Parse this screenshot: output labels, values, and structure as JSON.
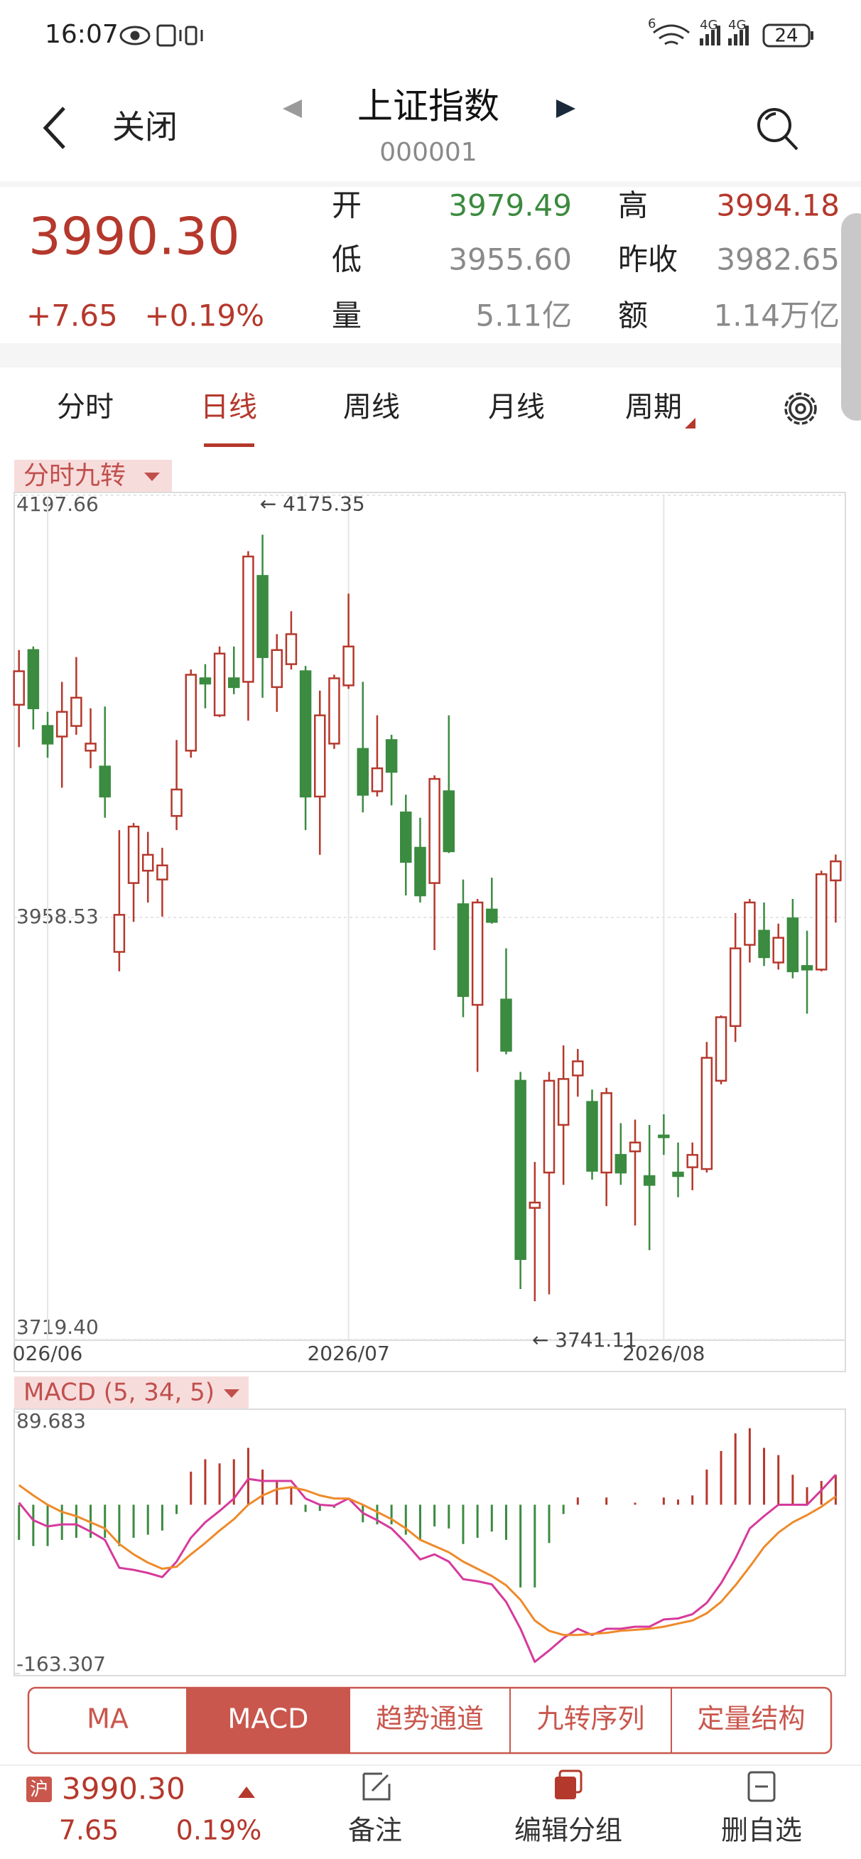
{
  "status_bar": {
    "time": "16:07",
    "wifi": "6",
    "network_1": "4G",
    "network_2": "4G",
    "battery": "24"
  },
  "header": {
    "back": "关闭",
    "title": "上证指数",
    "code": "000001"
  },
  "quote": {
    "price": "3990.30",
    "change": "+7.65",
    "change_pct": "+0.19%",
    "fields": [
      {
        "label": "开",
        "value": "3979.49"
      },
      {
        "label": "高",
        "value": "3994.18"
      },
      {
        "label": "低",
        "value": "3955.60"
      },
      {
        "label": "昨收",
        "value": "3982.65"
      },
      {
        "label": "量",
        "value": "5.11亿"
      },
      {
        "label": "额",
        "value": "1.14万亿"
      }
    ]
  },
  "tabs": [
    "分时",
    "日线",
    "周线",
    "月线",
    "周期"
  ],
  "indicator_tag": "分时九转",
  "chart_data": [
    {
      "type": "candlestick",
      "categories": [
        null,
        null,
        "026/06",
        null,
        null,
        null,
        null,
        null,
        null,
        null,
        null,
        null,
        null,
        null,
        null,
        null,
        null,
        null,
        null,
        null,
        null,
        null,
        null,
        "2026/07",
        null,
        null,
        null,
        null,
        null,
        null,
        null,
        null,
        null,
        null,
        null,
        null,
        null,
        null,
        null,
        null,
        null,
        null,
        null,
        null,
        null,
        "2026/08",
        null,
        null,
        null,
        null,
        null,
        null,
        null,
        null,
        null,
        null,
        null,
        null
      ],
      "open": [
        4079,
        4110,
        4067,
        4061,
        4067,
        4053,
        4044,
        3939,
        3978,
        3985,
        3980,
        4016,
        4053,
        4094,
        4073,
        4094,
        4092,
        4152,
        4089,
        4102,
        4098,
        4027,
        4057,
        4090,
        4054,
        4030,
        4059,
        4018,
        3998,
        3978,
        4030,
        3966,
        3909,
        3963,
        3912,
        3866,
        3794,
        3814,
        3841,
        3869,
        3854,
        3814,
        3824,
        3826,
        3812,
        3835,
        3814,
        3817,
        3816,
        3866,
        3897,
        3943,
        3951,
        3933,
        3958,
        3931,
        3929,
        3979.49
      ],
      "high": [
        4110,
        4112,
        4075,
        4092,
        4106,
        4077,
        4078,
        4008,
        4012,
        4007,
        3998,
        4059,
        4099,
        4102,
        4112,
        4112,
        4166,
        4175.35,
        4119,
        4132,
        4101,
        4087,
        4096,
        4142,
        4092,
        4073,
        4062,
        4028,
        4015,
        4039,
        4073,
        3980,
        3969,
        3981,
        3941,
        3871,
        3820,
        3871,
        3886,
        3884,
        3861,
        3862,
        3842,
        3844,
        3841,
        3847,
        3831,
        3831,
        3888,
        3903,
        3961,
        3969,
        3967,
        3955,
        3969,
        3951,
        3985,
        3994.18
      ],
      "low": [
        4055,
        4065,
        4049,
        4032,
        4062,
        4043,
        4015,
        3928,
        3956,
        3967,
        3959,
        4008,
        4049,
        4077,
        4072,
        4085,
        4070,
        4083,
        4075,
        4099,
        4008,
        3994,
        4054,
        4088,
        4018,
        4027,
        4022,
        3971,
        3967,
        3940,
        3995,
        3902,
        3871,
        3955,
        3881,
        3748,
        3741.11,
        3745,
        3807,
        3857,
        3810,
        3795,
        3807,
        3784,
        3770,
        3824,
        3800,
        3804,
        3814,
        3864,
        3888,
        3933,
        3931,
        3929,
        3924,
        3904,
        3928,
        3955.6
      ],
      "close": [
        4098,
        4077,
        4057,
        4075,
        4083,
        4057,
        4027,
        3960,
        4010,
        3994,
        3988,
        4031,
        4096,
        4091,
        4108,
        4089,
        4163,
        4106,
        4110,
        4119,
        4027,
        4073,
        4094,
        4112,
        4028,
        4043,
        4041,
        3990,
        3971,
        4037,
        3996,
        3914,
        3967,
        3956,
        3883,
        3765,
        3797,
        3866,
        3867,
        3877,
        3815,
        3859,
        3814,
        3831,
        3807,
        3834,
        3812,
        3824,
        3879,
        3902,
        3941,
        3967,
        3936,
        3947,
        3928,
        3929,
        3983,
        3990.3
      ],
      "up_color": "#b5382c",
      "down_color": "#3b8b40",
      "ylim": [
        3719.4,
        4197.66
      ],
      "yticks": [
        4197.66,
        3958.53,
        {
          "value": 3719.4,
          "label": "3719.40"
        }
      ],
      "max_label": "← 4175.35",
      "min_label": "← 3741.11",
      "grid": true
    },
    {
      "type": "macd",
      "title": "MACD (5, 34, 5)",
      "series": [
        {
          "color": "#d63a9c",
          "values": [
            2,
            -15,
            -21,
            -19,
            -19,
            -26,
            -34,
            -61,
            -63,
            -66,
            -70,
            -55,
            -32,
            -17,
            -6,
            6,
            25,
            23,
            23,
            23,
            6,
            0,
            -1,
            6,
            -8,
            -15,
            -23,
            -37,
            -53,
            -48,
            -55,
            -72,
            -74,
            -77,
            -94,
            -120,
            -152,
            -141,
            -129,
            -120,
            -126,
            -120,
            -120,
            -118,
            -118,
            -111,
            -110,
            -106,
            -95,
            -76,
            -52,
            -23,
            -11,
            0,
            0,
            0,
            14,
            29
          ]
        },
        {
          "color": "#ef8a2a",
          "values": [
            19,
            9,
            0,
            -7,
            -11,
            -17,
            -23,
            -38,
            -48,
            -56,
            -62,
            -60,
            -48,
            -37,
            -25,
            -14,
            0,
            9,
            15,
            17,
            14,
            9,
            6,
            6,
            0,
            -7,
            -14,
            -23,
            -34,
            -40,
            -46,
            -55,
            -62,
            -69,
            -78,
            -92,
            -112,
            -122,
            -126,
            -126,
            -125,
            -124,
            -122,
            -121,
            -120,
            -118,
            -115,
            -112,
            -105,
            -94,
            -78,
            -60,
            -41,
            -27,
            -17,
            -10,
            -2,
            8
          ]
        }
      ],
      "bars": {
        "up_color": "#b5382c",
        "down_color": "#3b8b40",
        "values": [
          -34,
          -40,
          -40,
          -34,
          -32,
          -32,
          -32,
          -40,
          -32,
          -29,
          -25,
          -9,
          32,
          44,
          40,
          44,
          55,
          34,
          23,
          17,
          -7,
          -6,
          -3,
          0,
          -17,
          -19,
          -19,
          -29,
          -34,
          -21,
          -23,
          -38,
          -32,
          -26,
          -34,
          -80,
          -80,
          -37,
          -9,
          7,
          0,
          7,
          0,
          2,
          0,
          7,
          5,
          9,
          34,
          52,
          69,
          74,
          55,
          48,
          29,
          17,
          23,
          29
        ]
      },
      "ylim": [
        -163.307,
        89.683
      ],
      "yticks": [
        89.683,
        -163.307
      ]
    }
  ],
  "indicator_buttons": [
    "MA",
    "MACD",
    "趋势通道",
    "九转序列",
    "定量结构"
  ],
  "footer": {
    "market": "沪",
    "price": "3990.30",
    "change": "7.65",
    "change_pct": "0.19%",
    "actions": [
      "备注",
      "编辑分组",
      "删自选"
    ]
  }
}
